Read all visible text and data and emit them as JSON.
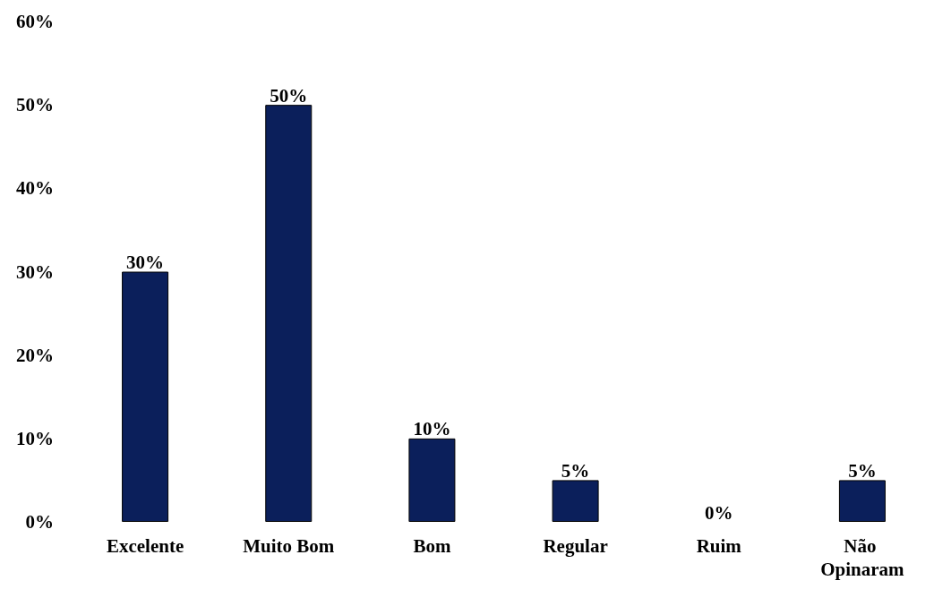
{
  "chart_data": {
    "type": "bar",
    "categories": [
      "Excelente",
      "Muito Bom",
      "Bom",
      "Regular",
      "Ruim",
      "Não Opinaram"
    ],
    "values": [
      30,
      50,
      10,
      5,
      0,
      5
    ],
    "color": "#0b1f5b",
    "value_labels": [
      "30%",
      "50%",
      "10%",
      "5%",
      "0%",
      "5%"
    ],
    "ylim": [
      0,
      60
    ],
    "yticks": [
      {
        "value": 0,
        "label": "0%"
      },
      {
        "value": 10,
        "label": "10%"
      },
      {
        "value": 20,
        "label": "20%"
      },
      {
        "value": 30,
        "label": "30%"
      },
      {
        "value": 40,
        "label": "40%"
      },
      {
        "value": 50,
        "label": "50%"
      },
      {
        "value": 60,
        "label": "60%"
      }
    ],
    "grid": false
  }
}
